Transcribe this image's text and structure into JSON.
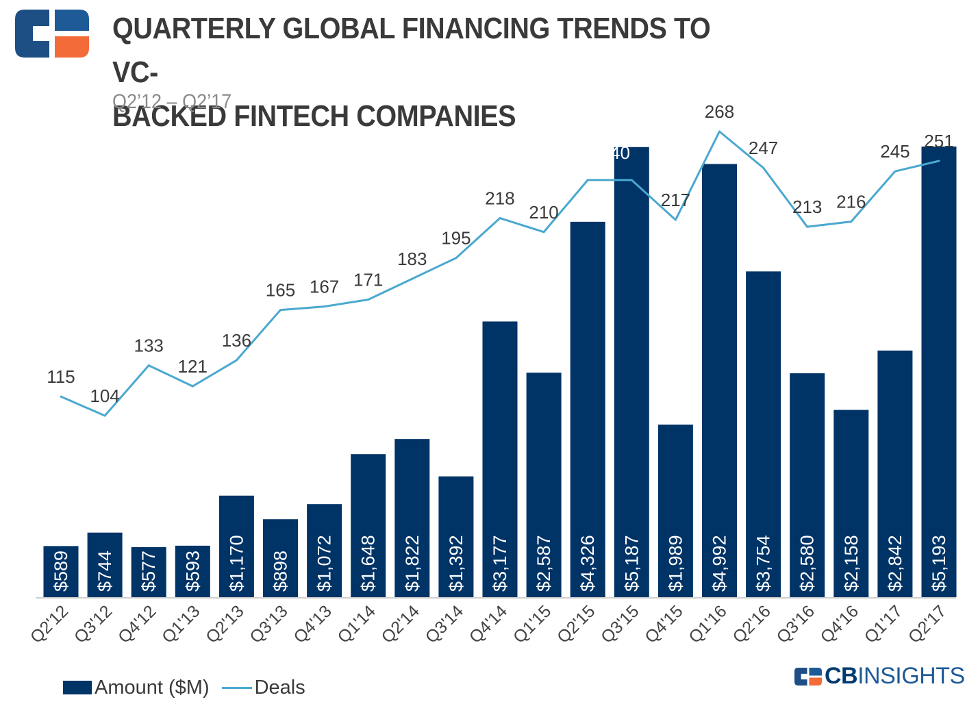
{
  "header": {
    "title_line1": "QUARTERLY GLOBAL FINANCING TRENDS TO VC-",
    "title_line2": "BACKED FINTECH COMPANIES",
    "subtitle": "Q2’12 – Q2’17"
  },
  "brand": {
    "cb": "CB",
    "insights": "INSIGHTS"
  },
  "legend": {
    "amount": "Amount ($M)",
    "deals": "Deals"
  },
  "colors": {
    "bar": "#003366",
    "line": "#4aa8d0",
    "text": "#3a3a3a",
    "bar_label": "#ffffff",
    "logo_orange": "#f26b38",
    "logo_blue": "#1d5a96"
  },
  "chart_data": {
    "type": "bar",
    "categories": [
      "Q2'12",
      "Q3'12",
      "Q4'12",
      "Q1'13",
      "Q2'13",
      "Q3'13",
      "Q4'13",
      "Q1'14",
      "Q2'14",
      "Q3'14",
      "Q4'14",
      "Q1'15",
      "Q2'15",
      "Q3'15",
      "Q4'15",
      "Q1'16",
      "Q2'16",
      "Q3'16",
      "Q4'16",
      "Q1'17",
      "Q2'17"
    ],
    "series": [
      {
        "name": "Amount ($M)",
        "type": "bar",
        "values": [
          589,
          744,
          577,
          593,
          1170,
          898,
          1072,
          1648,
          1822,
          1392,
          3177,
          2587,
          4326,
          5187,
          1989,
          4992,
          3754,
          2580,
          2158,
          2842,
          5193
        ],
        "labels": [
          "$589",
          "$744",
          "$577",
          "$593",
          "$1,170",
          "$898",
          "$1,072",
          "$1,648",
          "$1,822",
          "$1,392",
          "$3,177",
          "$2,587",
          "$4,326",
          "$5,187",
          "$1,989",
          "$4,992",
          "$3,754",
          "$2,580",
          "$2,158",
          "$2,842",
          "$5,193"
        ]
      },
      {
        "name": "Deals",
        "type": "line",
        "values": [
          115,
          104,
          133,
          121,
          136,
          165,
          167,
          171,
          183,
          195,
          218,
          210,
          240,
          240,
          217,
          268,
          247,
          213,
          216,
          245,
          251
        ],
        "labels": [
          "115",
          "104",
          "133",
          "121",
          "136",
          "165",
          "167",
          "171",
          "183",
          "195",
          "218",
          "210",
          "",
          "240",
          "217",
          "268",
          "247",
          "213",
          "216",
          "245",
          "251"
        ]
      }
    ],
    "ylim_amount": [
      0,
      5193
    ],
    "grid": false,
    "legend_position": "bottom-left"
  }
}
